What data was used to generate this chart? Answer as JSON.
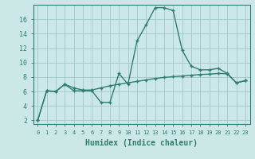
{
  "xlabel": "Humidex (Indice chaleur)",
  "bg_color": "#cce8e6",
  "line_color": "#2e7d6e",
  "grid_color": "#a0c8c5",
  "xlim": [
    -0.5,
    23.5
  ],
  "ylim": [
    1.5,
    18.0
  ],
  "yticks": [
    2,
    4,
    6,
    8,
    10,
    12,
    14,
    16
  ],
  "xticks": [
    0,
    1,
    2,
    3,
    4,
    5,
    6,
    7,
    8,
    9,
    10,
    11,
    12,
    13,
    14,
    15,
    16,
    17,
    18,
    19,
    20,
    21,
    22,
    23
  ],
  "curve1_x": [
    0,
    1,
    2,
    3,
    4,
    5,
    6,
    7,
    8,
    9,
    10,
    11,
    12,
    13,
    14,
    15,
    16,
    17,
    18,
    19,
    20,
    21,
    22,
    23
  ],
  "curve1_y": [
    2.0,
    6.1,
    6.0,
    7.0,
    6.1,
    6.1,
    6.1,
    4.5,
    4.5,
    8.5,
    7.0,
    13.0,
    15.2,
    17.6,
    17.6,
    17.2,
    11.7,
    9.5,
    9.0,
    9.0,
    9.2,
    8.5,
    7.2,
    7.5
  ],
  "curve2_x": [
    0,
    1,
    2,
    3,
    4,
    5,
    6,
    7,
    8,
    9,
    10,
    11,
    12,
    13,
    14,
    15,
    16,
    17,
    18,
    19,
    20,
    21,
    22,
    23
  ],
  "curve2_y": [
    2.0,
    6.1,
    6.0,
    7.0,
    6.5,
    6.2,
    6.2,
    6.5,
    6.8,
    7.0,
    7.2,
    7.4,
    7.6,
    7.8,
    7.95,
    8.05,
    8.15,
    8.25,
    8.35,
    8.4,
    8.5,
    8.45,
    7.2,
    7.5
  ],
  "tick_color": "#2e7d6e",
  "label_color": "#2e7d6e",
  "xlabel_fontsize": 7,
  "ytick_fontsize": 6,
  "xtick_fontsize": 5
}
